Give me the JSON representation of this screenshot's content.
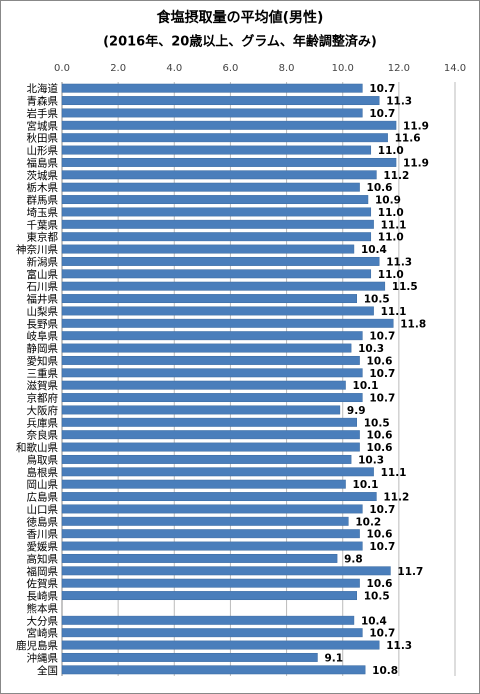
{
  "chart_data": {
    "type": "hbar",
    "title": "食塩摂取量の平均値(男性)",
    "subtitle": "(2016年、20歳以上、グラム、年齢調整済み)",
    "categories": [
      "北海道",
      "青森県",
      "岩手県",
      "宮城県",
      "秋田県",
      "山形県",
      "福島県",
      "茨城県",
      "栃木県",
      "群馬県",
      "埼玉県",
      "千葉県",
      "東京都",
      "神奈川県",
      "新潟県",
      "富山県",
      "石川県",
      "福井県",
      "山梨県",
      "長野県",
      "岐阜県",
      "静岡県",
      "愛知県",
      "三重県",
      "滋賀県",
      "京都府",
      "大阪府",
      "兵庫県",
      "奈良県",
      "和歌山県",
      "鳥取県",
      "島根県",
      "岡山県",
      "広島県",
      "山口県",
      "徳島県",
      "香川県",
      "愛媛県",
      "高知県",
      "福岡県",
      "佐賀県",
      "長崎県",
      "熊本県",
      "大分県",
      "宮崎県",
      "鹿児島県",
      "沖縄県",
      "全国"
    ],
    "values": [
      10.7,
      11.3,
      10.7,
      11.9,
      11.6,
      11.0,
      11.9,
      11.2,
      10.6,
      10.9,
      11.0,
      11.1,
      11.0,
      10.4,
      11.3,
      11.0,
      11.5,
      10.5,
      11.1,
      11.8,
      10.7,
      10.3,
      10.6,
      10.7,
      10.1,
      10.7,
      9.9,
      10.5,
      10.6,
      10.6,
      10.3,
      11.1,
      10.1,
      11.2,
      10.7,
      10.2,
      10.6,
      10.7,
      9.8,
      11.7,
      10.6,
      10.5,
      null,
      10.4,
      10.7,
      11.3,
      9.1,
      10.8
    ],
    "value_labels": [
      "10.7",
      "11.3",
      "10.7",
      "11.9",
      "11.6",
      "11.0",
      "11.9",
      "11.2",
      "10.6",
      "10.9",
      "11.0",
      "11.1",
      "11.0",
      "10.4",
      "11.3",
      "11.0",
      "11.5",
      "10.5",
      "11.1",
      "11.8",
      "10.7",
      "10.3",
      "10.6",
      "10.7",
      "10.1",
      "10.7",
      "9.9",
      "10.5",
      "10.6",
      "10.6",
      "10.3",
      "11.1",
      "10.1",
      "11.2",
      "10.7",
      "10.2",
      "10.6",
      "10.7",
      "9.8",
      "11.7",
      "10.6",
      "10.5",
      null,
      "10.4",
      "10.7",
      "11.3",
      "9.1",
      "10.8"
    ],
    "color": "#4a7ebb",
    "xlim": [
      0,
      14
    ],
    "xticks": [
      {
        "value": 0,
        "label": "0.0"
      },
      {
        "value": 2,
        "label": "2.0"
      },
      {
        "value": 4,
        "label": "4.0"
      },
      {
        "value": 6,
        "label": "6.0"
      },
      {
        "value": 8,
        "label": "8.0"
      },
      {
        "value": 10,
        "label": "10.0"
      },
      {
        "value": 12,
        "label": "12.0"
      },
      {
        "value": 14,
        "label": "14.0"
      }
    ],
    "grid": true
  }
}
